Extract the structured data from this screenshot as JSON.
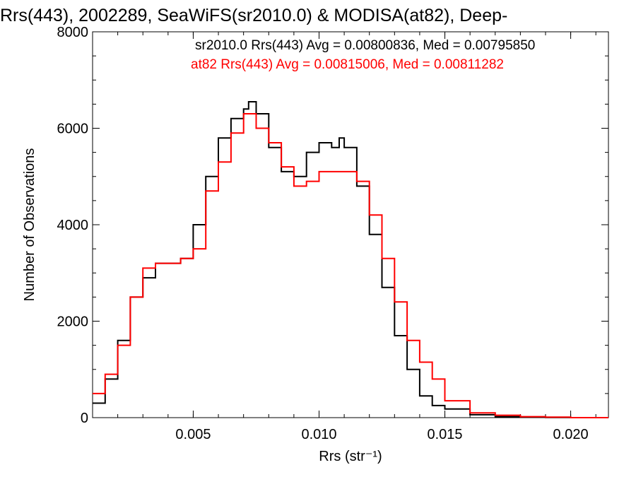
{
  "chart_data": {
    "type": "line",
    "title": "Rrs(443), 2002289, SeaWiFS(sr2010.0) & MODISA(at82), Deep-",
    "xlabel": "Rrs (str⁻¹)",
    "ylabel": "Number of Observations",
    "xlim": [
      0.001,
      0.0215
    ],
    "ylim": [
      0,
      8000
    ],
    "x_ticks": [
      0.005,
      0.01,
      0.015,
      0.02
    ],
    "x_tick_labels": [
      "0.005",
      "0.010",
      "0.015",
      "0.020"
    ],
    "y_ticks": [
      0,
      2000,
      4000,
      6000,
      8000
    ],
    "y_tick_labels": [
      "0",
      "2000",
      "4000",
      "6000",
      "8000"
    ],
    "legend_position": "top-right",
    "grid": false,
    "series": [
      {
        "name": "sr2010.0",
        "label": "sr2010.0 Rrs(443) Avg = 0.00800836, Med = 0.00795850",
        "color": "#000000",
        "x": [
          0.001,
          0.0015,
          0.002,
          0.0025,
          0.003,
          0.0035,
          0.004,
          0.0045,
          0.005,
          0.0055,
          0.006,
          0.0065,
          0.007,
          0.0072,
          0.0075,
          0.008,
          0.0085,
          0.009,
          0.0095,
          0.01,
          0.0105,
          0.0108,
          0.011,
          0.0115,
          0.012,
          0.0125,
          0.013,
          0.0135,
          0.014,
          0.0145,
          0.015,
          0.016,
          0.017,
          0.018,
          0.019,
          0.02,
          0.0215
        ],
        "y": [
          300,
          800,
          1600,
          2500,
          2900,
          3200,
          3200,
          3300,
          4000,
          5000,
          5800,
          6200,
          6400,
          6550,
          6300,
          5600,
          5100,
          5000,
          5500,
          5700,
          5600,
          5800,
          5600,
          4800,
          3800,
          2700,
          1700,
          1000,
          450,
          250,
          180,
          60,
          20,
          10,
          5,
          0,
          0
        ]
      },
      {
        "name": "at82",
        "label": "at82 Rrs(443) Avg = 0.00815006, Med = 0.00811282",
        "color": "#ff0000",
        "x": [
          0.001,
          0.0015,
          0.002,
          0.0025,
          0.003,
          0.0035,
          0.004,
          0.0045,
          0.005,
          0.0055,
          0.006,
          0.0065,
          0.007,
          0.0075,
          0.008,
          0.0085,
          0.009,
          0.0095,
          0.01,
          0.0105,
          0.011,
          0.0115,
          0.012,
          0.0125,
          0.013,
          0.0135,
          0.014,
          0.0145,
          0.015,
          0.016,
          0.017,
          0.018,
          0.019,
          0.02,
          0.0215
        ],
        "y": [
          500,
          900,
          1500,
          2500,
          3100,
          3200,
          3200,
          3300,
          3500,
          4700,
          5300,
          5900,
          6300,
          6000,
          5700,
          5200,
          4800,
          4900,
          5100,
          5100,
          5100,
          4900,
          4200,
          3300,
          2400,
          1600,
          1150,
          800,
          350,
          100,
          50,
          20,
          10,
          0,
          0
        ]
      }
    ]
  }
}
